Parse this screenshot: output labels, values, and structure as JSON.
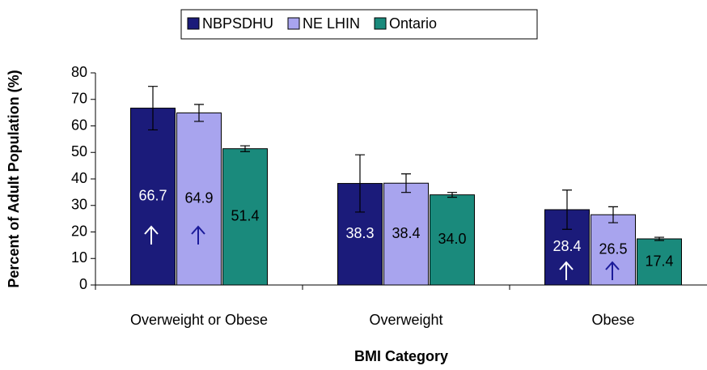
{
  "chart_data": {
    "type": "bar",
    "xlabel": "BMI Category",
    "ylabel": "Percent of Adult Population (%)",
    "categories": [
      "Overweight or Obese",
      "Overweight",
      "Obese"
    ],
    "series": [
      {
        "name": "NBPSDHU",
        "color": "#1b1b7a",
        "values": [
          66.7,
          38.3,
          28.4
        ],
        "value_labels": [
          "66.7",
          "38.3",
          "28.4"
        ],
        "errors": [
          8.2,
          10.8,
          7.4
        ]
      },
      {
        "name": "NE LHIN",
        "color": "#a8a4ee",
        "values": [
          64.9,
          38.4,
          26.5
        ],
        "value_labels": [
          "64.9",
          "38.4",
          "26.5"
        ],
        "errors": [
          3.2,
          3.5,
          3.0
        ]
      },
      {
        "name": "Ontario",
        "color": "#1a8a7c",
        "values": [
          51.4,
          34.0,
          17.4
        ],
        "value_labels": [
          "51.4",
          "34.0",
          "17.4"
        ],
        "errors": [
          1.1,
          0.9,
          0.6
        ]
      }
    ],
    "ylim": [
      0,
      80
    ],
    "yticks": [
      0,
      10,
      20,
      30,
      40,
      50,
      60,
      70,
      80
    ],
    "legend": "top"
  }
}
